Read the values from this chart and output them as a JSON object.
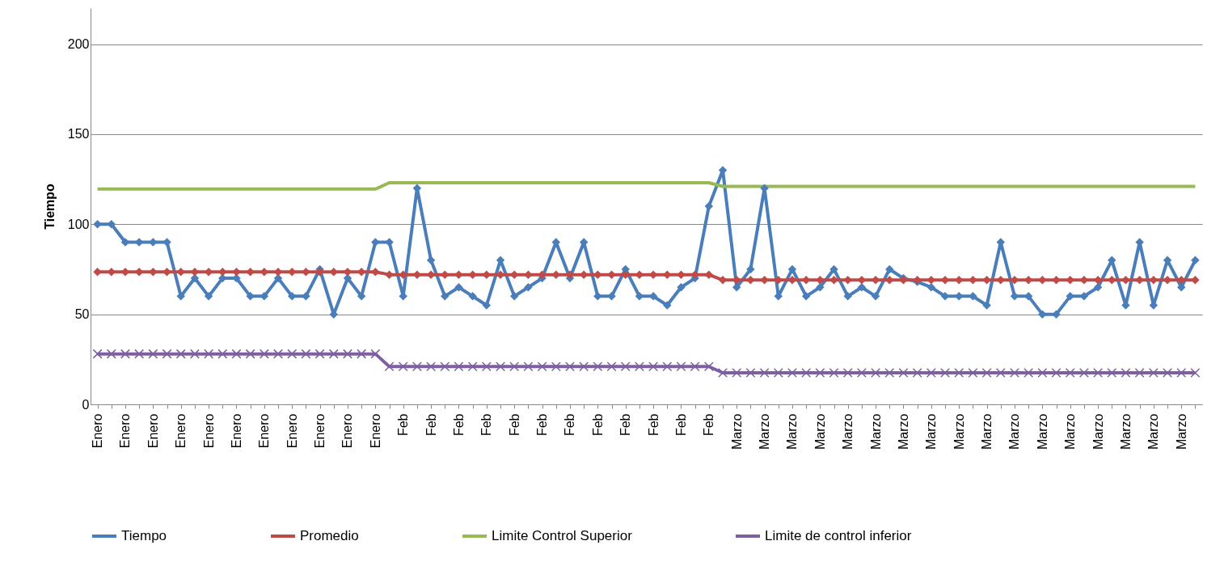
{
  "chart_data": {
    "type": "line",
    "ylabel": "Tiempo",
    "categories": [
      "Enero",
      null,
      "Enero",
      null,
      "Enero",
      null,
      "Enero",
      null,
      "Enero",
      null,
      "Enero",
      null,
      "Enero",
      null,
      "Enero",
      null,
      "Enero",
      null,
      "Enero",
      null,
      "Enero",
      null,
      "Feb",
      null,
      "Feb",
      null,
      "Feb",
      null,
      "Feb",
      null,
      "Feb",
      null,
      "Feb",
      null,
      "Feb",
      null,
      "Feb",
      null,
      "Feb",
      null,
      "Feb",
      null,
      "Feb",
      null,
      "Feb",
      null,
      "Marzo",
      null,
      "Marzo",
      null,
      "Marzo",
      null,
      "Marzo",
      null,
      "Marzo",
      null,
      "Marzo",
      null,
      "Marzo",
      null,
      "Marzo",
      null,
      "Marzo",
      null,
      "Marzo",
      null,
      "Marzo",
      null,
      "Marzo",
      null,
      "Marzo",
      null,
      "Marzo",
      null,
      "Marzo",
      null,
      "Marzo",
      null,
      "Marzo",
      null
    ],
    "series": [
      {
        "name": "Tiempo",
        "color": "#4a7ebb",
        "marker": "diamond",
        "values": [
          100,
          100,
          90,
          90,
          90,
          90,
          60,
          70,
          60,
          70,
          70,
          60,
          60,
          70,
          60,
          60,
          75,
          50,
          70,
          60,
          90,
          90,
          60,
          120,
          80,
          60,
          65,
          60,
          55,
          80,
          60,
          65,
          70,
          90,
          70,
          90,
          60,
          60,
          75,
          60,
          60,
          55,
          65,
          70,
          110,
          130,
          65,
          75,
          120,
          60,
          75,
          60,
          65,
          75,
          60,
          65,
          60,
          75,
          70,
          68,
          65,
          60,
          60,
          60,
          55,
          90,
          60,
          60,
          50,
          50,
          60,
          60,
          65,
          80,
          55,
          90,
          55,
          80,
          65,
          80
        ]
      },
      {
        "name": "Promedio",
        "color": "#be4b48",
        "marker": "diamond",
        "values": [
          73.5,
          73.5,
          73.5,
          73.5,
          73.5,
          73.5,
          73.5,
          73.5,
          73.5,
          73.5,
          73.5,
          73.5,
          73.5,
          73.5,
          73.5,
          73.5,
          73.5,
          73.5,
          73.5,
          73.5,
          73.5,
          72,
          72,
          72,
          72,
          72,
          72,
          72,
          72,
          72,
          72,
          72,
          72,
          72,
          72,
          72,
          72,
          72,
          72,
          72,
          72,
          72,
          72,
          72,
          72,
          69,
          69,
          69,
          69,
          69,
          69,
          69,
          69,
          69,
          69,
          69,
          69,
          69,
          69,
          69,
          69,
          69,
          69,
          69,
          69,
          69,
          69,
          69,
          69,
          69,
          69,
          69,
          69,
          69,
          69,
          69,
          69,
          69,
          69,
          69
        ]
      },
      {
        "name": "Limite Control Superior",
        "color": "#98b954",
        "marker": "none",
        "values": [
          119.5,
          119.5,
          119.5,
          119.5,
          119.5,
          119.5,
          119.5,
          119.5,
          119.5,
          119.5,
          119.5,
          119.5,
          119.5,
          119.5,
          119.5,
          119.5,
          119.5,
          119.5,
          119.5,
          119.5,
          119.5,
          123,
          123,
          123,
          123,
          123,
          123,
          123,
          123,
          123,
          123,
          123,
          123,
          123,
          123,
          123,
          123,
          123,
          123,
          123,
          123,
          123,
          123,
          123,
          123,
          121,
          121,
          121,
          121,
          121,
          121,
          121,
          121,
          121,
          121,
          121,
          121,
          121,
          121,
          121,
          121,
          121,
          121,
          121,
          121,
          121,
          121,
          121,
          121,
          121,
          121,
          121,
          121,
          121,
          121,
          121,
          121,
          121,
          121,
          121
        ]
      },
      {
        "name": "Limite de control inferior",
        "color": "#7d60a0",
        "marker": "cross",
        "values": [
          28,
          28,
          28,
          28,
          28,
          28,
          28,
          28,
          28,
          28,
          28,
          28,
          28,
          28,
          28,
          28,
          28,
          28,
          28,
          28,
          28,
          21,
          21,
          21,
          21,
          21,
          21,
          21,
          21,
          21,
          21,
          21,
          21,
          21,
          21,
          21,
          21,
          21,
          21,
          21,
          21,
          21,
          21,
          21,
          21,
          17.5,
          17.5,
          17.5,
          17.5,
          17.5,
          17.5,
          17.5,
          17.5,
          17.5,
          17.5,
          17.5,
          17.5,
          17.5,
          17.5,
          17.5,
          17.5,
          17.5,
          17.5,
          17.5,
          17.5,
          17.5,
          17.5,
          17.5,
          17.5,
          17.5,
          17.5,
          17.5,
          17.5,
          17.5,
          17.5,
          17.5,
          17.5,
          17.5,
          17.5,
          17.5
        ]
      }
    ],
    "ylim": [
      0,
      220
    ],
    "yticks": [
      0,
      50,
      100,
      150,
      200
    ],
    "grid": "y",
    "legend": "bottom"
  }
}
